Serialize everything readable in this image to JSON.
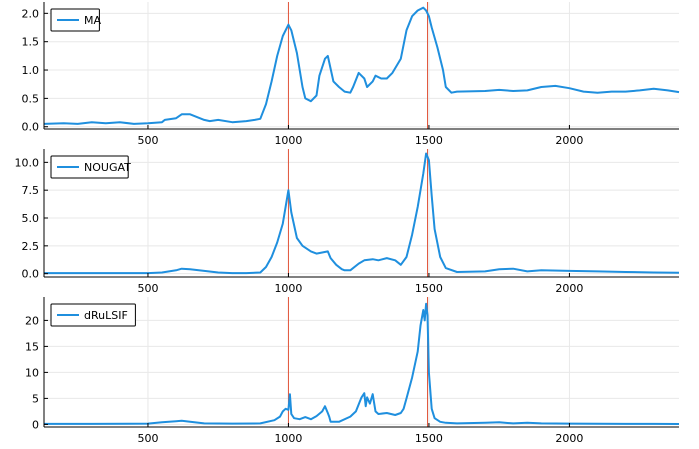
{
  "colors": {
    "series": "#1f8fde",
    "vline": "#e2553a",
    "grid": "#e8e8e8",
    "axis": "#000000"
  },
  "chart_data": [
    {
      "type": "line",
      "xlim": [
        130,
        2390
      ],
      "ylim": [
        -0.04,
        2.2
      ],
      "xticks": [
        500,
        1000,
        1500,
        2000
      ],
      "xtick_labels": [
        "500",
        "1000",
        "1500",
        "2000"
      ],
      "yticks": [
        0,
        0.5,
        1.0,
        1.5,
        2.0
      ],
      "ytick_labels": [
        "0.0",
        "0.5",
        "1.0",
        "1.5",
        "2.0"
      ],
      "vlines": [
        1000,
        1495
      ],
      "legend": "top-left",
      "series": [
        {
          "name": "MA",
          "x": [
            130,
            200,
            250,
            300,
            350,
            400,
            450,
            500,
            550,
            560,
            600,
            620,
            650,
            700,
            720,
            750,
            800,
            850,
            880,
            900,
            920,
            940,
            960,
            980,
            1000,
            1010,
            1030,
            1050,
            1060,
            1080,
            1100,
            1110,
            1130,
            1140,
            1160,
            1180,
            1200,
            1220,
            1230,
            1250,
            1270,
            1280,
            1300,
            1310,
            1330,
            1350,
            1370,
            1400,
            1420,
            1440,
            1460,
            1480,
            1490,
            1500,
            1510,
            1530,
            1550,
            1560,
            1580,
            1600,
            1700,
            1750,
            1800,
            1850,
            1900,
            1950,
            2000,
            2050,
            2100,
            2150,
            2200,
            2250,
            2300,
            2350,
            2390
          ],
          "y": [
            0.05,
            0.06,
            0.05,
            0.08,
            0.06,
            0.08,
            0.05,
            0.06,
            0.08,
            0.12,
            0.15,
            0.22,
            0.22,
            0.12,
            0.1,
            0.12,
            0.08,
            0.1,
            0.12,
            0.14,
            0.4,
            0.8,
            1.25,
            1.6,
            1.8,
            1.7,
            1.3,
            0.7,
            0.5,
            0.45,
            0.55,
            0.9,
            1.2,
            1.25,
            0.8,
            0.7,
            0.62,
            0.6,
            0.7,
            0.95,
            0.85,
            0.7,
            0.8,
            0.9,
            0.85,
            0.85,
            0.95,
            1.2,
            1.7,
            1.95,
            2.05,
            2.1,
            2.05,
            1.95,
            1.75,
            1.4,
            1.0,
            0.7,
            0.6,
            0.62,
            0.63,
            0.65,
            0.63,
            0.64,
            0.7,
            0.72,
            0.68,
            0.62,
            0.6,
            0.62,
            0.62,
            0.64,
            0.67,
            0.64,
            0.61
          ]
        }
      ]
    },
    {
      "type": "line",
      "xlim": [
        130,
        2390
      ],
      "ylim": [
        -0.3,
        11.2
      ],
      "xticks": [
        500,
        1000,
        1500,
        2000
      ],
      "xtick_labels": [
        "500",
        "1000",
        "1500",
        "2000"
      ],
      "yticks": [
        0,
        2.5,
        5.0,
        7.5,
        10.0
      ],
      "ytick_labels": [
        "0.0",
        "2.5",
        "5.0",
        "7.5",
        "10.0"
      ],
      "vlines": [
        1000,
        1495
      ],
      "legend": "top-left",
      "series": [
        {
          "name": "NOUGAT",
          "x": [
            130,
            300,
            500,
            550,
            600,
            620,
            650,
            700,
            750,
            800,
            850,
            900,
            920,
            940,
            960,
            980,
            990,
            1000,
            1010,
            1030,
            1050,
            1080,
            1100,
            1120,
            1140,
            1150,
            1170,
            1190,
            1200,
            1220,
            1250,
            1270,
            1300,
            1320,
            1350,
            1380,
            1400,
            1420,
            1440,
            1460,
            1480,
            1490,
            1500,
            1510,
            1520,
            1540,
            1560,
            1600,
            1700,
            1750,
            1800,
            1850,
            1900,
            2000,
            2100,
            2200,
            2300,
            2390
          ],
          "y": [
            0.05,
            0.05,
            0.05,
            0.1,
            0.3,
            0.45,
            0.4,
            0.25,
            0.1,
            0.05,
            0.05,
            0.1,
            0.6,
            1.5,
            2.8,
            4.5,
            6.0,
            7.5,
            5.5,
            3.2,
            2.5,
            2.0,
            1.8,
            1.9,
            2.0,
            1.4,
            0.8,
            0.4,
            0.3,
            0.3,
            0.9,
            1.2,
            1.3,
            1.2,
            1.4,
            1.2,
            0.8,
            1.5,
            3.5,
            6.0,
            9.0,
            10.8,
            10.2,
            7.0,
            4.0,
            1.5,
            0.5,
            0.15,
            0.2,
            0.4,
            0.45,
            0.2,
            0.3,
            0.25,
            0.2,
            0.15,
            0.1,
            0.08
          ]
        }
      ]
    },
    {
      "type": "line",
      "xlim": [
        130,
        2390
      ],
      "ylim": [
        -0.5,
        24.5
      ],
      "xticks": [
        500,
        1000,
        1500,
        2000
      ],
      "xtick_labels": [
        "500",
        "1000",
        "1500",
        "2000"
      ],
      "yticks": [
        0,
        5,
        10,
        15,
        20
      ],
      "ytick_labels": [
        "0",
        "5",
        "10",
        "15",
        "20"
      ],
      "vlines": [
        1000,
        1495
      ],
      "legend": "top-left",
      "series": [
        {
          "name": "dRuLSIF",
          "x": [
            130,
            300,
            500,
            550,
            600,
            620,
            650,
            700,
            800,
            900,
            950,
            970,
            980,
            990,
            1000,
            1005,
            1010,
            1020,
            1040,
            1060,
            1080,
            1100,
            1120,
            1130,
            1140,
            1145,
            1150,
            1180,
            1220,
            1240,
            1260,
            1270,
            1275,
            1280,
            1290,
            1300,
            1310,
            1320,
            1350,
            1380,
            1400,
            1410,
            1420,
            1440,
            1460,
            1470,
            1480,
            1485,
            1490,
            1495,
            1500,
            1510,
            1520,
            1540,
            1560,
            1600,
            1700,
            1750,
            1800,
            1850,
            1900,
            2000,
            2100,
            2200,
            2300,
            2390
          ],
          "y": [
            0.1,
            0.1,
            0.15,
            0.4,
            0.6,
            0.7,
            0.5,
            0.2,
            0.15,
            0.2,
            0.8,
            1.5,
            2.5,
            3.0,
            2.8,
            5.8,
            2.0,
            1.2,
            1.0,
            1.4,
            1.0,
            1.6,
            2.5,
            3.5,
            2.2,
            1.5,
            0.5,
            0.5,
            1.5,
            2.5,
            5.2,
            6.0,
            3.5,
            5.2,
            4.0,
            5.8,
            2.5,
            2.0,
            2.2,
            1.8,
            2.2,
            3.0,
            5.0,
            9.0,
            14.0,
            19.0,
            22.0,
            20.0,
            23.2,
            21.0,
            10.0,
            3.0,
            1.2,
            0.5,
            0.3,
            0.2,
            0.3,
            0.4,
            0.2,
            0.3,
            0.2,
            0.15,
            0.12,
            0.1,
            0.1,
            0.08
          ]
        }
      ]
    }
  ]
}
